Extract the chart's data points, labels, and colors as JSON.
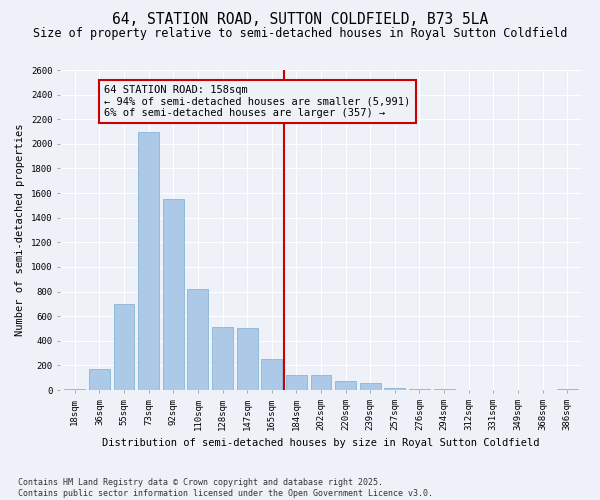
{
  "title": "64, STATION ROAD, SUTTON COLDFIELD, B73 5LA",
  "subtitle": "Size of property relative to semi-detached houses in Royal Sutton Coldfield",
  "xlabel": "Distribution of semi-detached houses by size in Royal Sutton Coldfield",
  "ylabel": "Number of semi-detached properties",
  "bin_labels": [
    "18sqm",
    "36sqm",
    "55sqm",
    "73sqm",
    "92sqm",
    "110sqm",
    "128sqm",
    "147sqm",
    "165sqm",
    "184sqm",
    "202sqm",
    "220sqm",
    "239sqm",
    "257sqm",
    "276sqm",
    "294sqm",
    "312sqm",
    "331sqm",
    "349sqm",
    "368sqm",
    "386sqm"
  ],
  "bar_values": [
    5,
    170,
    700,
    2100,
    1550,
    820,
    510,
    500,
    250,
    120,
    120,
    70,
    55,
    20,
    10,
    5,
    2,
    0,
    0,
    0,
    10
  ],
  "bar_color": "#adc9e8",
  "bar_edge_color": "#7aaed4",
  "vline_x": 8.5,
  "vline_color": "#cc0000",
  "annotation_text": "64 STATION ROAD: 158sqm\n← 94% of semi-detached houses are smaller (5,991)\n6% of semi-detached houses are larger (357) →",
  "annotation_box_color": "#cc0000",
  "ylim": [
    0,
    2600
  ],
  "yticks": [
    0,
    200,
    400,
    600,
    800,
    1000,
    1200,
    1400,
    1600,
    1800,
    2000,
    2200,
    2400,
    2600
  ],
  "footnote": "Contains HM Land Registry data © Crown copyright and database right 2025.\nContains public sector information licensed under the Open Government Licence v3.0.",
  "bg_color": "#eef2f8",
  "grid_color": "#ffffff",
  "title_fontsize": 10.5,
  "subtitle_fontsize": 8.5,
  "axis_label_fontsize": 7.5,
  "tick_fontsize": 6.5,
  "annotation_fontsize": 7.5,
  "footnote_fontsize": 6.0
}
